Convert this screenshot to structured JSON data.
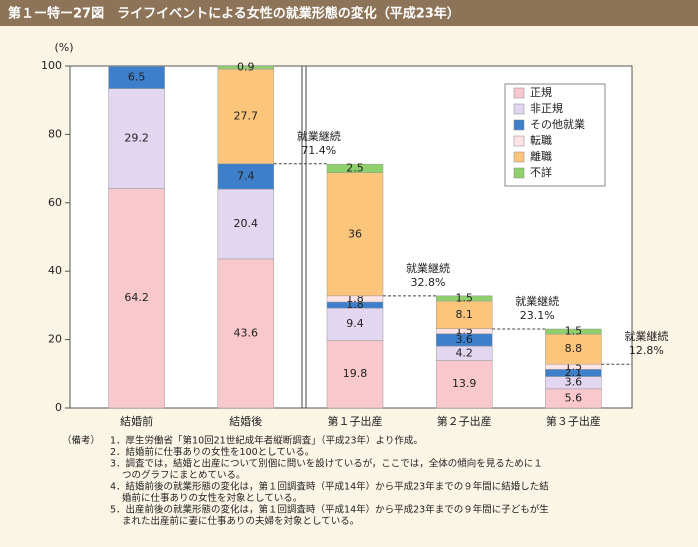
{
  "chart_data": {
    "type": "stacked_bar",
    "title": "第１ー特ー27図　ライフイベントによる女性の就業形態の変化（平成23年）",
    "y_unit": "(%)",
    "categories": [
      "結婚前",
      "結婚後",
      "第１子出産",
      "第２子出産",
      "第３子出産"
    ],
    "series": [
      {
        "name": "正規",
        "color": "#f8c8cc",
        "values": [
          64.2,
          43.6,
          19.8,
          13.9,
          5.6
        ]
      },
      {
        "name": "非正規",
        "color": "#e2d6f0",
        "values": [
          29.2,
          20.4,
          9.4,
          4.2,
          3.6
        ]
      },
      {
        "name": "その他就業",
        "color": "#3d7fcb",
        "values": [
          6.5,
          7.4,
          1.8,
          3.6,
          2.1
        ]
      },
      {
        "name": "転職",
        "color": "#fde3e6",
        "values": [
          null,
          null,
          1.8,
          1.5,
          1.5
        ]
      },
      {
        "name": "離職",
        "color": "#fbc67c",
        "values": [
          null,
          27.7,
          36.0,
          8.1,
          8.8
        ]
      },
      {
        "name": "不詳",
        "color": "#8fd06c",
        "values": [
          null,
          0.9,
          2.5,
          1.5,
          1.5
        ]
      }
    ],
    "annotations": [
      {
        "text": "就業継続",
        "value": 71.4,
        "value_label": "71.4%"
      },
      {
        "text": "就業継続",
        "value": 32.8,
        "value_label": "32.8%"
      },
      {
        "text": "就業継続",
        "value": 23.1,
        "value_label": "23.1%"
      },
      {
        "text": "就業継続",
        "value": 12.8,
        "value_label": "12.8%"
      }
    ],
    "ylim": [
      0,
      100
    ],
    "yticks": [
      0,
      20,
      40,
      60,
      80,
      100
    ],
    "legend": "upper-right"
  },
  "notes": {
    "label": "（備考）",
    "items": [
      [
        "1．厚生労働省「第10回21世紀成年者縦断調査」（平成23年）より作成。"
      ],
      [
        "2．結婚前に仕事ありの女性を100としている。"
      ],
      [
        "3．調査では，結婚と出産について別個に問いを設けているが，ここでは，全体の傾向を見るために１",
        "つのグラフにまとめている。"
      ],
      [
        "4．結婚前後の就業形態の変化は，第１回調査時（平成14年）から平成23年までの９年間に結婚した結",
        "婚前に仕事ありの女性を対象としている。"
      ],
      [
        "5．出産前後の就業形態の変化は，第１回調査時（平成14年）から平成23年までの９年間に子どもが生",
        "まれた出産前に妻に仕事ありの夫婦を対象としている。"
      ]
    ]
  }
}
